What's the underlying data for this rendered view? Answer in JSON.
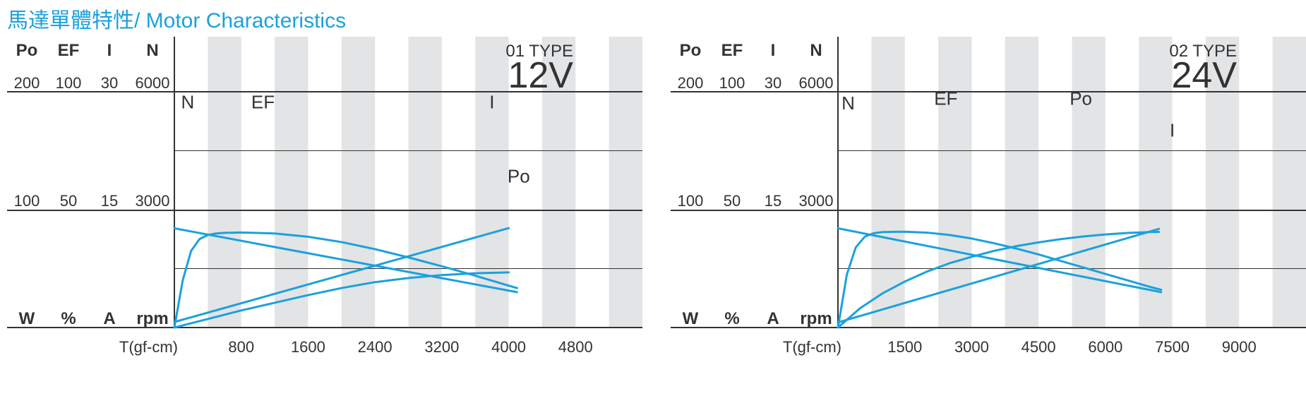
{
  "page": {
    "title": "馬達單體特性/ Motor Characteristics"
  },
  "colors": {
    "curve": "#1ba1dc",
    "title": "#1ba1dc",
    "band": "#e3e4e6",
    "axis": "#333333"
  },
  "chart_data": [
    {
      "type": "line",
      "type_label": "01 TYPE",
      "voltage": "12V",
      "xlabel": "T(gf-cm)",
      "x_ticks": [
        800,
        1600,
        2400,
        3200,
        4000,
        4800
      ],
      "x_tick_labels": [
        "800",
        "1600",
        "2400",
        "3200",
        "4000",
        "4800"
      ],
      "xlim": [
        0,
        5600
      ],
      "column_headers": [
        "Po",
        "EF",
        "I",
        "N"
      ],
      "units": [
        "W",
        "%",
        "A",
        "rpm"
      ],
      "scale_top": [
        "200",
        "100",
        "30",
        "6000"
      ],
      "scale_mid": [
        "100",
        "50",
        "15",
        "3000"
      ],
      "ylim_norm": [
        0,
        2
      ],
      "grid": true,
      "series": [
        {
          "name": "N",
          "unit": "rpm",
          "max": 6000,
          "x": [
            0,
            4100
          ],
          "y": [
            5050,
            1800
          ]
        },
        {
          "name": "EF",
          "unit": "%",
          "max": 100,
          "x": [
            0,
            100,
            200,
            300,
            400,
            500,
            600,
            800,
            1200,
            1600,
            2000,
            2400,
            2800,
            3200,
            3600,
            4000,
            4100
          ],
          "y": [
            0,
            40,
            65,
            75,
            78.5,
            79.8,
            80.3,
            80.6,
            79.8,
            77,
            72.5,
            66.5,
            59.5,
            52,
            44,
            35.5,
            33.5
          ]
        },
        {
          "name": "I",
          "unit": "A",
          "max": 30,
          "x": [
            0,
            4000
          ],
          "y": [
            1.4,
            25.3
          ]
        },
        {
          "name": "Po",
          "unit": "W",
          "max": 200,
          "x": [
            0,
            400,
            800,
            1200,
            1600,
            2000,
            2400,
            2800,
            3200,
            3600,
            4000
          ],
          "y": [
            0,
            14.5,
            29,
            42,
            55,
            67,
            77,
            84,
            89,
            92,
            93.5
          ]
        }
      ],
      "curve_labels": [
        {
          "name": "N",
          "text": "N",
          "x": 160,
          "y": 1.86
        },
        {
          "name": "EF",
          "text": "EF",
          "x": 1060,
          "y": 1.86
        },
        {
          "name": "I",
          "text": "I",
          "x": 3800,
          "y": 1.86
        },
        {
          "name": "Po",
          "text": "Po",
          "x": 4120,
          "y": 1.23
        }
      ]
    },
    {
      "type": "line",
      "type_label": "02 TYPE",
      "voltage": "24V",
      "xlabel": "T(gf-cm)",
      "x_ticks": [
        1500,
        3000,
        4500,
        6000,
        7500,
        9000
      ],
      "x_tick_labels": [
        "1500",
        "3000",
        "4500",
        "6000",
        "7500",
        "9000"
      ],
      "xlim": [
        0,
        10500
      ],
      "column_headers": [
        "Po",
        "EF",
        "I",
        "N"
      ],
      "units": [
        "W",
        "%",
        "A",
        "rpm"
      ],
      "scale_top": [
        "200",
        "100",
        "30",
        "6000"
      ],
      "scale_mid": [
        "100",
        "50",
        "15",
        "3000"
      ],
      "ylim_norm": [
        0,
        2
      ],
      "grid": true,
      "series": [
        {
          "name": "N",
          "unit": "rpm",
          "max": 6000,
          "x": [
            0,
            7250
          ],
          "y": [
            5050,
            1800
          ]
        },
        {
          "name": "EF",
          "unit": "%",
          "max": 100,
          "x": [
            0,
            200,
            400,
            600,
            800,
            1000,
            1500,
            2000,
            2500,
            3000,
            3500,
            4000,
            4500,
            5000,
            5500,
            6000,
            6500,
            7000,
            7250
          ],
          "y": [
            0,
            45,
            68,
            77,
            80,
            81,
            81.3,
            80.5,
            78.5,
            75.5,
            71.5,
            67,
            62,
            56.5,
            51,
            45.5,
            40,
            34.5,
            32
          ]
        },
        {
          "name": "I",
          "unit": "A",
          "max": 30,
          "x": [
            0,
            7200
          ],
          "y": [
            1.3,
            25.1
          ]
        },
        {
          "name": "Po",
          "unit": "W",
          "max": 200,
          "x": [
            0,
            500,
            1000,
            1500,
            2000,
            2500,
            3000,
            3500,
            4000,
            4500,
            5000,
            5500,
            6000,
            6500,
            7000,
            7200
          ],
          "y": [
            0,
            33,
            58,
            78,
            95,
            109,
            120,
            130,
            138,
            144.5,
            150,
            154.5,
            158,
            160.5,
            162,
            162.3
          ]
        }
      ],
      "curve_labels": [
        {
          "name": "N",
          "text": "N",
          "x": 230,
          "y": 1.85
        },
        {
          "name": "EF",
          "text": "EF",
          "x": 2420,
          "y": 1.89
        },
        {
          "name": "Po",
          "text": "Po",
          "x": 5450,
          "y": 1.89
        },
        {
          "name": "I",
          "text": "I",
          "x": 7500,
          "y": 1.62
        }
      ]
    }
  ]
}
